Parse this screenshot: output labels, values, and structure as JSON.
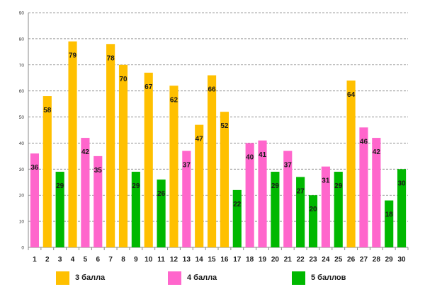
{
  "chart_data": {
    "type": "bar",
    "title": "",
    "xlabel": "",
    "ylabel": "",
    "ylim": [
      0,
      90
    ],
    "yticks": [
      0,
      10,
      20,
      30,
      40,
      50,
      60,
      70,
      80,
      90
    ],
    "grid": true,
    "legend_position": "bottom",
    "categories": [
      "1",
      "2",
      "3",
      "4",
      "5",
      "6",
      "7",
      "8",
      "9",
      "10",
      "11",
      "12",
      "13",
      "14",
      "15",
      "16",
      "17",
      "18",
      "19",
      "20",
      "21",
      "22",
      "23",
      "24",
      "25",
      "26",
      "27",
      "28",
      "29",
      "30"
    ],
    "values": [
      36,
      58,
      29,
      79,
      42,
      35,
      78,
      70,
      29,
      67,
      26,
      62,
      37,
      47,
      66,
      52,
      22,
      40,
      41,
      29,
      37,
      27,
      20,
      31,
      29,
      64,
      46,
      42,
      18,
      30
    ],
    "value_classes": [
      "4 балла",
      "3 балла",
      "5 баллов",
      "3 балла",
      "4 балла",
      "4 балла",
      "3 балла",
      "3 балла",
      "5 баллов",
      "3 балла",
      "5 баллов",
      "3 балла",
      "4 балла",
      "3 балла",
      "3 балла",
      "3 балла",
      "5 баллов",
      "4 балла",
      "4 балла",
      "5 баллов",
      "4 балла",
      "5 баллов",
      "5 баллов",
      "4 балла",
      "5 баллов",
      "3 балла",
      "4 балла",
      "4 балла",
      "5 баллов",
      "5 баллов"
    ],
    "series": [
      {
        "name": "3 балла",
        "color": "#FFC000"
      },
      {
        "name": "4 балла",
        "color": "#FF66CC"
      },
      {
        "name": "5 баллов",
        "color": "#00B800"
      }
    ]
  },
  "legend": {
    "items": [
      {
        "label": "3 балла",
        "color": "#FFC000"
      },
      {
        "label": "4 балла",
        "color": "#FF66CC"
      },
      {
        "label": "5 баллов",
        "color": "#00B800"
      }
    ]
  }
}
